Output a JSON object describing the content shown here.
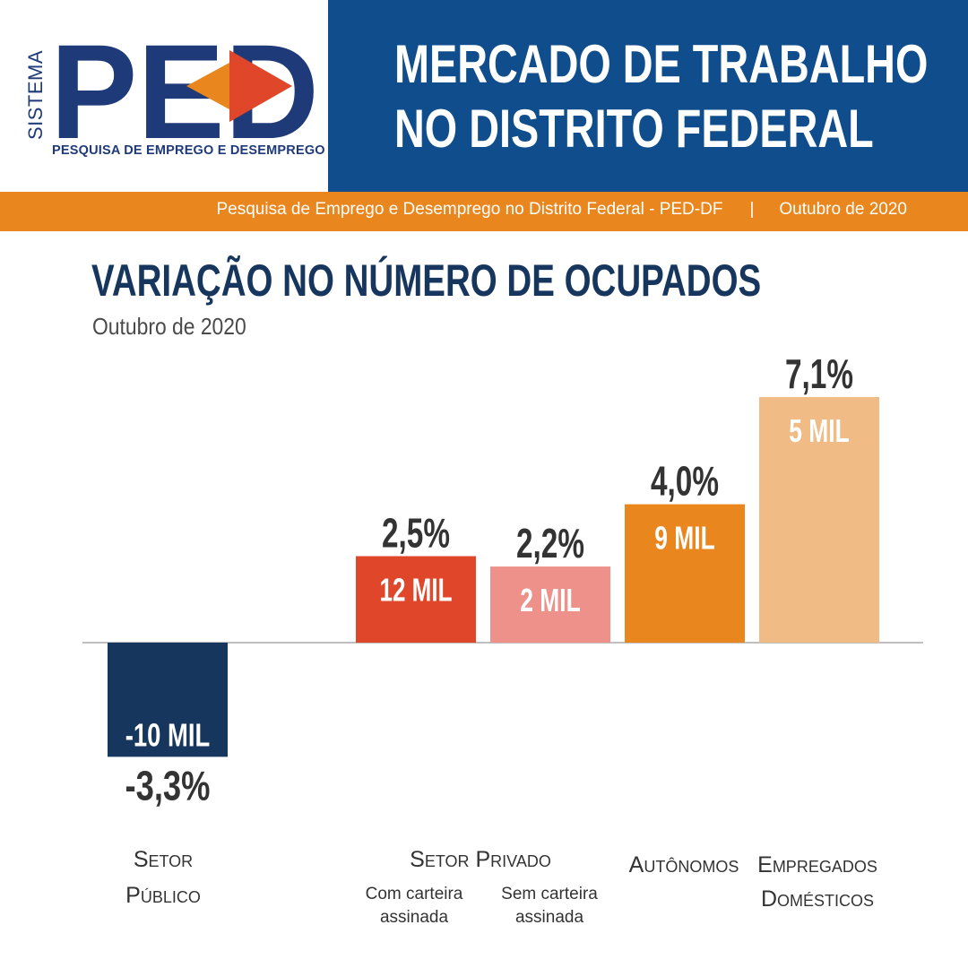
{
  "header": {
    "logo": {
      "sistema": "SISTEMA",
      "letters": "PED",
      "tagline": "PESQUISA DE EMPREGO E DESEMPREGO"
    },
    "title_lines": [
      "MERCADO DE TRABALHO",
      "NO DISTRITO FEDERAL"
    ],
    "band_source": "Pesquisa de Emprego e Desemprego no Distrito Federal - PED-DF",
    "band_separator": "|",
    "band_date": "Outubro de 2020",
    "colors": {
      "navy": "#0f4d8c",
      "orange": "#e9861d"
    }
  },
  "chart_data": {
    "type": "bar",
    "title": "VARIAÇÃO NO NÚMERO DE OCUPADOS",
    "subtitle": "Outubro de 2020",
    "group_labels": {
      "setor_publico": [
        "Setor",
        "Público"
      ],
      "setor_privado": "Setor Privado",
      "autonomos": "Autônomos",
      "empregados_domesticos": [
        "Empregados",
        "Domésticos"
      ]
    },
    "categories": [
      "Com carteira assinada",
      "Sem carteira assinada"
    ],
    "bars": [
      {
        "id": "setor-publico",
        "percent": -3.3,
        "percent_label": "-3,3%",
        "value": -10,
        "value_label": "-10 MIL",
        "color": "#17365e"
      },
      {
        "id": "com-carteira",
        "percent": 2.5,
        "percent_label": "2,5%",
        "value": 12,
        "value_label": "12 MIL",
        "color": "#e0462a"
      },
      {
        "id": "sem-carteira",
        "percent": 2.2,
        "percent_label": "2,2%",
        "value": 2,
        "value_label": "2 MIL",
        "color": "#ee918a"
      },
      {
        "id": "autonomos",
        "percent": 4.0,
        "percent_label": "4,0%",
        "value": 9,
        "value_label": "9 MIL",
        "color": "#e9861d"
      },
      {
        "id": "empregados-domesticos",
        "percent": 7.1,
        "percent_label": "7,1%",
        "value": 5,
        "value_label": "5 MIL",
        "color": "#f0bb85"
      }
    ],
    "unit": "mil ocupados",
    "baseline_color": "#aaaaaa"
  }
}
